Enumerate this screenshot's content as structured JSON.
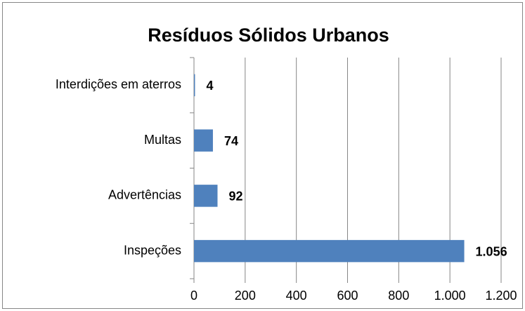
{
  "chart_data": {
    "type": "barh",
    "title": "Resíduos Sólidos Urbanos",
    "categories": [
      "Inspeções",
      "Advertências",
      "Multas",
      "Interdições em aterros"
    ],
    "values": [
      1056,
      92,
      74,
      4
    ],
    "value_labels": [
      "1.056",
      "92",
      "74",
      "4"
    ],
    "color": "#4f81bd",
    "xlim": [
      0,
      1200
    ],
    "xticks": [
      0,
      200,
      400,
      600,
      800,
      {
        "value": 1000,
        "label": "1.000"
      },
      {
        "value": 1200,
        "label": "1.200"
      }
    ],
    "grid": true
  }
}
